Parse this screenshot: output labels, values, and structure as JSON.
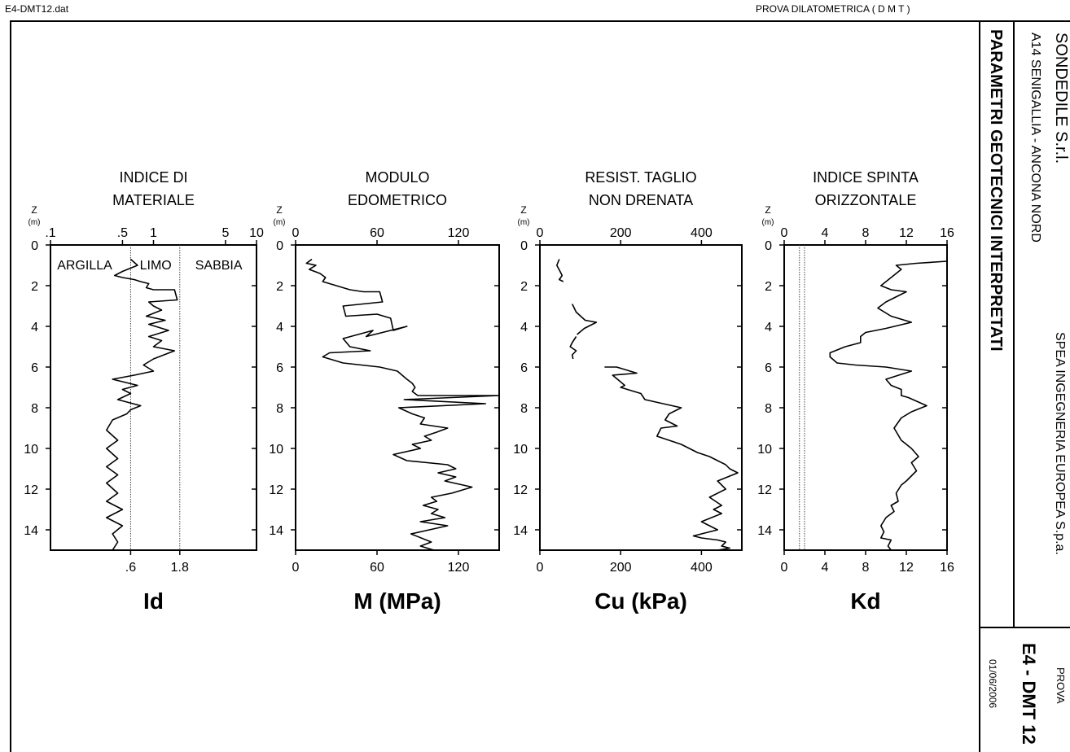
{
  "header": {
    "file": "E4-DMT12.dat",
    "test_type": "PROVA DILATOMETRICA ( D M T )"
  },
  "title_block": {
    "company": "SONDEDILE S.r.l.",
    "location": "A14 SENIGALLIA - ANCONA NORD",
    "subtitle": "PARAMETRI GEOTECNICI INTERPRETATI",
    "client": "SPEA INGEGNERIA EUROPEA S.p.a.",
    "prova_label": "PROVA",
    "prova_id": "E4 - DMT 12",
    "date": "01/06/2006"
  },
  "chart_data": [
    {
      "type": "line",
      "title": "INDICE DI\nMATERIALE",
      "xlabel": "Id",
      "ylabel": "Z\n(m)",
      "xscale": "log",
      "xlim": [
        0.1,
        10
      ],
      "ylim": [
        15,
        0
      ],
      "y_ticks": [
        "0",
        "2",
        "4",
        "6",
        "8",
        "10",
        "12",
        "14"
      ],
      "top_ticks": [
        {
          "v": 0.1,
          "t": ".1"
        },
        {
          "v": 0.5,
          "t": ".5"
        },
        {
          "v": 1,
          "t": "1"
        },
        {
          "v": 5,
          "t": "5"
        },
        {
          "v": 10,
          "t": "10"
        }
      ],
      "bottom_ticks": [
        {
          "v": 0.6,
          "t": ".6"
        },
        {
          "v": 1.8,
          "t": "1.8"
        }
      ],
      "ref_lines": [
        0.6,
        1.8
      ],
      "zones": [
        "ARGILLA",
        "LIMO",
        "SABBIA"
      ],
      "series": [
        {
          "x": [
            0.6,
            0.7,
            0.5,
            0.42,
            0.5,
            0.65,
            0.75,
            0.9,
            0.85,
            1.0,
            1.6,
            1.7,
            0.9,
            1.0,
            1.2,
            0.85,
            1.3,
            0.9,
            1.4,
            0.9,
            1.2,
            1.0,
            1.6,
            1.0,
            0.8,
            1.0,
            0.65,
            0.4,
            0.7,
            0.5,
            0.6,
            0.45,
            0.75,
            0.6,
            0.55,
            0.4,
            0.35,
            0.45,
            0.35,
            0.45,
            0.35,
            0.45,
            0.35,
            0.45,
            0.35,
            0.5,
            0.35,
            0.5,
            0.4,
            0.45,
            0.4
          ],
          "y": [
            0.7,
            1.0,
            1.3,
            1.5,
            1.6,
            1.7,
            1.8,
            1.9,
            2.1,
            2.2,
            2.2,
            2.7,
            2.8,
            3.0,
            3.2,
            3.5,
            3.7,
            3.9,
            4.2,
            4.5,
            4.7,
            5.0,
            5.2,
            5.6,
            5.9,
            6.2,
            6.4,
            6.6,
            6.9,
            7.1,
            7.3,
            7.6,
            7.9,
            8.1,
            8.3,
            8.6,
            9.1,
            9.6,
            10.0,
            10.5,
            10.9,
            11.3,
            11.7,
            12.2,
            12.6,
            13.0,
            13.4,
            13.8,
            14.2,
            14.6,
            15.0
          ]
        }
      ]
    },
    {
      "type": "line",
      "title": "MODULO\nEDOMETRICO",
      "xlabel": "M (MPa)",
      "ylabel": "Z\n(m)",
      "xlim": [
        0,
        150
      ],
      "ylim": [
        15,
        0
      ],
      "y_ticks": [
        "0",
        "2",
        "4",
        "6",
        "8",
        "10",
        "12",
        "14"
      ],
      "top_ticks": [
        {
          "v": 0,
          "t": "0"
        },
        {
          "v": 60,
          "t": "60"
        },
        {
          "v": 120,
          "t": "120"
        }
      ],
      "bottom_ticks": [
        {
          "v": 0,
          "t": "0"
        },
        {
          "v": 60,
          "t": "60"
        },
        {
          "v": 120,
          "t": "120"
        }
      ],
      "series": [
        {
          "x": [
            12,
            8,
            15,
            10,
            18,
            22,
            20,
            30,
            40,
            50,
            62,
            64,
            35,
            37,
            60,
            70,
            72,
            82,
            52,
            57,
            35,
            40,
            55,
            25,
            20,
            35,
            62,
            75,
            82,
            86,
            88,
            86,
            90,
            150,
            80,
            140,
            76,
            86,
            95,
            92,
            112,
            104,
            95,
            100,
            86,
            92,
            72,
            82,
            112,
            118,
            105,
            118,
            110,
            130,
            115,
            100,
            104,
            94,
            105,
            100,
            110,
            92,
            112,
            85,
            100,
            92,
            102
          ],
          "y": [
            0.7,
            0.9,
            1.0,
            1.2,
            1.4,
            1.6,
            1.8,
            2.0,
            2.2,
            2.3,
            2.3,
            2.8,
            3.0,
            3.5,
            3.4,
            3.6,
            4.2,
            4.0,
            4.5,
            4.2,
            4.6,
            5.0,
            5.2,
            5.3,
            5.5,
            5.8,
            6.0,
            6.2,
            6.6,
            6.8,
            7.0,
            7.2,
            7.4,
            7.4,
            7.6,
            7.8,
            8.0,
            8.3,
            8.5,
            8.8,
            9.0,
            9.2,
            9.4,
            9.6,
            9.8,
            10.0,
            10.3,
            10.6,
            10.8,
            11.0,
            11.2,
            11.4,
            11.6,
            11.9,
            12.2,
            12.4,
            12.6,
            12.8,
            13.0,
            13.2,
            13.4,
            13.6,
            13.8,
            14.2,
            14.6,
            14.8,
            15.0
          ]
        }
      ]
    },
    {
      "type": "line",
      "title": "RESIST. TAGLIO\nNON DRENATA",
      "xlabel": "Cu (kPa)",
      "ylabel": "Z\n(m)",
      "xlim": [
        0,
        500
      ],
      "ylim": [
        15,
        0
      ],
      "y_ticks": [
        "0",
        "2",
        "4",
        "6",
        "8",
        "10",
        "12",
        "14"
      ],
      "top_ticks": [
        {
          "v": 0,
          "t": "0"
        },
        {
          "v": 200,
          "t": "200"
        },
        {
          "v": 400,
          "t": "400"
        }
      ],
      "bottom_ticks": [
        {
          "v": 0,
          "t": "0"
        },
        {
          "v": 200,
          "t": "200"
        },
        {
          "v": 400,
          "t": "400"
        }
      ],
      "segments": [
        {
          "x": [
            48,
            42,
            50,
            55,
            48,
            58
          ],
          "y": [
            0.7,
            1.0,
            1.3,
            1.5,
            1.7,
            1.8
          ]
        },
        {
          "x": [
            80,
            90,
            112,
            140,
            110,
            92
          ],
          "y": [
            2.9,
            3.3,
            3.7,
            3.8,
            4.1,
            4.4
          ]
        },
        {
          "x": [
            90,
            80,
            75,
            90,
            80,
            82
          ],
          "y": [
            4.5,
            4.8,
            5.0,
            5.2,
            5.4,
            5.6
          ]
        },
        {
          "x": [
            160,
            190,
            240,
            180,
            210,
            200,
            250,
            260,
            350,
            320,
            310,
            340,
            300,
            290,
            350,
            390,
            420,
            440,
            460,
            470,
            490,
            440,
            460,
            420,
            450,
            430,
            450,
            400,
            440,
            380,
            400,
            440,
            460,
            450,
            470,
            440
          ],
          "y": [
            6.0,
            6.0,
            6.3,
            6.4,
            6.9,
            7.0,
            7.3,
            7.6,
            8.0,
            8.3,
            8.6,
            8.9,
            9.0,
            9.4,
            9.8,
            10.2,
            10.4,
            10.6,
            10.8,
            11.0,
            11.2,
            11.6,
            12.0,
            12.4,
            12.8,
            13.0,
            13.2,
            13.6,
            14.0,
            14.3,
            14.4,
            14.5,
            14.6,
            14.8,
            14.9,
            15.0
          ]
        }
      ]
    },
    {
      "type": "line",
      "title": "INDICE SPINTA\nORIZZONTALE",
      "xlabel": "Kd",
      "ylabel": "Z\n(m)",
      "xlim": [
        0,
        16
      ],
      "ylim": [
        15,
        0
      ],
      "y_ticks": [
        "0",
        "2",
        "4",
        "6",
        "8",
        "10",
        "12",
        "14"
      ],
      "top_ticks": [
        {
          "v": 0,
          "t": "0"
        },
        {
          "v": 4,
          "t": "4"
        },
        {
          "v": 8,
          "t": "8"
        },
        {
          "v": 12,
          "t": "12"
        },
        {
          "v": 16,
          "t": "16"
        }
      ],
      "bottom_ticks": [
        {
          "v": 0,
          "t": "0"
        },
        {
          "v": 4,
          "t": "4"
        },
        {
          "v": 8,
          "t": "8"
        },
        {
          "v": 12,
          "t": "12"
        },
        {
          "v": 16,
          "t": "16"
        }
      ],
      "ref_lines": [
        1.5,
        2.0
      ],
      "series": [
        {
          "x": [
            16,
            13,
            11,
            11.5,
            10.5,
            9.5,
            10.5,
            12,
            10,
            9.2,
            10.5,
            12.5,
            10,
            8,
            7.5,
            7.5,
            6,
            5.5,
            4.5,
            4.5,
            5.2,
            7,
            10,
            12.5,
            10,
            10.5,
            11.5,
            11.5,
            12.2,
            14,
            12.5,
            11.5,
            10.8,
            11.5,
            12.5,
            13.2,
            12.5,
            13,
            12,
            11.5,
            11,
            11.2,
            10.5,
            10.8,
            10,
            9.5,
            9.8,
            9.5,
            10.5,
            10.2,
            10.5
          ],
          "y": [
            0.8,
            0.9,
            1.0,
            1.2,
            1.6,
            2.0,
            2.2,
            2.3,
            2.8,
            3.1,
            3.5,
            3.8,
            4.1,
            4.3,
            4.5,
            4.8,
            5.0,
            5.1,
            5.3,
            5.5,
            5.8,
            5.9,
            6.0,
            6.2,
            6.6,
            6.9,
            7.1,
            7.4,
            7.5,
            7.9,
            8.2,
            8.5,
            9.0,
            9.6,
            10.0,
            10.4,
            10.7,
            11.1,
            11.6,
            11.8,
            12.2,
            12.6,
            12.8,
            13.1,
            13.4,
            13.8,
            14.1,
            14.4,
            14.5,
            14.8,
            15.0
          ]
        }
      ]
    }
  ]
}
